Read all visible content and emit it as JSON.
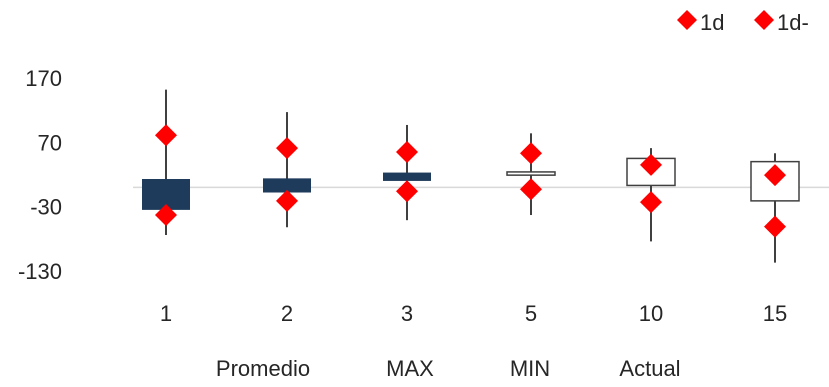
{
  "chart_data": {
    "type": "candlestick",
    "title": "",
    "xlabel": "",
    "ylabel": "",
    "ylim": [
      -130,
      170
    ],
    "yticks": [
      "170",
      "70",
      "-30",
      "-130"
    ],
    "ytick_values": [
      170,
      70,
      -30,
      -130
    ],
    "categories": [
      "1",
      "2",
      "3",
      "5",
      "10",
      "15"
    ],
    "series": [
      {
        "name": "box",
        "open": [
          -35,
          -8,
          10,
          24,
          45,
          40
        ],
        "close": [
          13,
          14,
          23,
          19,
          3,
          -21
        ],
        "high": [
          152,
          117,
          97,
          84,
          61,
          53
        ],
        "low": [
          -74,
          -62,
          -51,
          -43,
          -84,
          -117
        ],
        "fill": [
          "dark",
          "dark",
          "dark",
          "light",
          "light",
          "light"
        ]
      },
      {
        "name": "1d",
        "values": [
          81,
          61,
          55,
          53,
          35,
          19
        ],
        "color": "#ff0000",
        "marker": "diamond"
      },
      {
        "name": "1d-",
        "values": [
          -43,
          -21,
          -6,
          -3,
          -23,
          -61
        ],
        "color": "#ff0000",
        "marker": "diamond"
      }
    ],
    "zero_line": 0,
    "bottom_labels": [
      "Promedio",
      "MAX",
      "MIN",
      "Actual"
    ],
    "legend_position": "top-right",
    "grid": false,
    "colors": {
      "dark_box": "#1f3b5c",
      "light_box": "#ffffff",
      "box_outline": "#404040",
      "marker": "#ff0000",
      "baseline": "#d9d9d9",
      "text": "#262626"
    }
  }
}
